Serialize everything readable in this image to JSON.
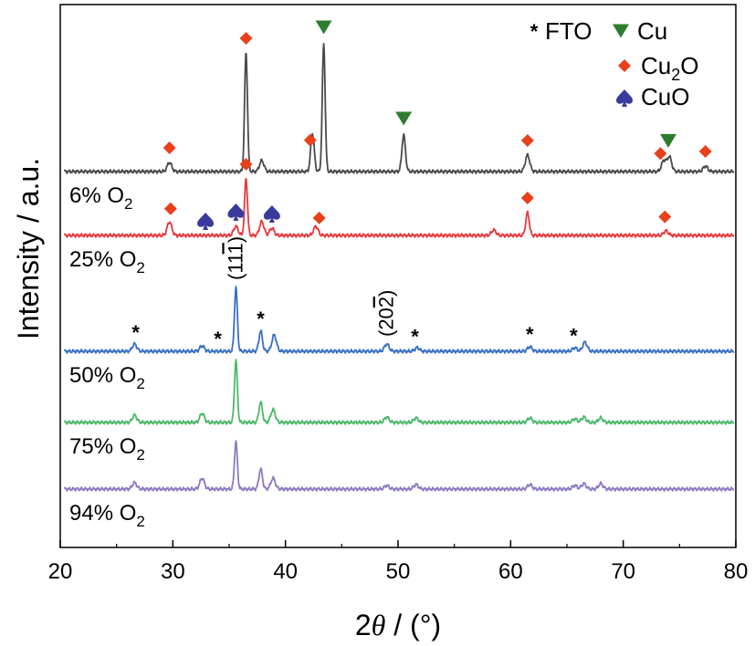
{
  "chart_data": {
    "type": "line",
    "xlabel_prefix": "2",
    "xlabel_theta": "θ",
    "xlabel_suffix": " / (°)",
    "ylabel": "Intensity / a.u.",
    "xlim": [
      20,
      80
    ],
    "xticks": [
      "20",
      "30",
      "40",
      "50",
      "60",
      "70",
      "80"
    ],
    "xtick_values": [
      20,
      30,
      40,
      50,
      60,
      70,
      80
    ],
    "grid": false,
    "legend": {
      "placement": "top-right",
      "items": [
        {
          "marker": "star",
          "label": "FTO"
        },
        {
          "marker": "triangle-down",
          "label": "Cu",
          "color": "#2e7d2e"
        },
        {
          "marker": "diamond",
          "label": "Cu",
          "sub": "2",
          "label_tail": "O",
          "color": "#e8401c"
        },
        {
          "marker": "spade",
          "label": "CuO",
          "color": "#3a3a9c"
        }
      ]
    },
    "series": [
      {
        "label_main": "6% O",
        "label_sub": "2",
        "color": "#4a4a4a",
        "baseline": 0.0,
        "peaks": [
          [
            29.7,
            0.1
          ],
          [
            36.5,
            1.3
          ],
          [
            37.9,
            0.12
          ],
          [
            42.4,
            0.42
          ],
          [
            43.4,
            1.4
          ],
          [
            50.5,
            0.4
          ],
          [
            61.5,
            0.18
          ],
          [
            73.6,
            0.12
          ],
          [
            74.1,
            0.16
          ],
          [
            77.3,
            0.06
          ]
        ]
      },
      {
        "label_main": "25% O",
        "label_sub": "2",
        "color": "#e8383d",
        "baseline": 0.0,
        "peaks": [
          [
            29.7,
            0.15
          ],
          [
            35.6,
            0.1
          ],
          [
            36.5,
            0.62
          ],
          [
            37.9,
            0.15
          ],
          [
            38.8,
            0.08
          ],
          [
            42.7,
            0.1
          ],
          [
            58.5,
            0.06
          ],
          [
            61.5,
            0.25
          ],
          [
            73.8,
            0.05
          ]
        ]
      },
      {
        "label_main": "50% O",
        "label_sub": "2",
        "color": "#3a6fc4",
        "baseline": 0.0,
        "peaks": [
          [
            26.6,
            0.08
          ],
          [
            32.6,
            0.06
          ],
          [
            35.6,
            0.7
          ],
          [
            37.8,
            0.22
          ],
          [
            39.0,
            0.18
          ],
          [
            49.0,
            0.08
          ],
          [
            51.7,
            0.04
          ],
          [
            61.7,
            0.05
          ],
          [
            65.7,
            0.04
          ],
          [
            66.6,
            0.1
          ]
        ]
      },
      {
        "label_main": "75% O",
        "label_sub": "2",
        "color": "#4cb86a",
        "baseline": 0.0,
        "peaks": [
          [
            26.6,
            0.08
          ],
          [
            32.6,
            0.1
          ],
          [
            35.6,
            0.68
          ],
          [
            37.8,
            0.22
          ],
          [
            38.9,
            0.14
          ],
          [
            49.0,
            0.06
          ],
          [
            51.6,
            0.05
          ],
          [
            61.7,
            0.05
          ],
          [
            65.7,
            0.04
          ],
          [
            66.5,
            0.06
          ],
          [
            68.0,
            0.05
          ]
        ]
      },
      {
        "label_main": "94% O",
        "label_sub": "2",
        "color": "#8e7ac2",
        "baseline": 0.0,
        "peaks": [
          [
            26.6,
            0.07
          ],
          [
            32.6,
            0.12
          ],
          [
            35.6,
            0.52
          ],
          [
            37.8,
            0.22
          ],
          [
            38.9,
            0.12
          ],
          [
            49.0,
            0.04
          ],
          [
            51.6,
            0.05
          ],
          [
            61.7,
            0.05
          ],
          [
            65.7,
            0.04
          ],
          [
            66.5,
            0.06
          ],
          [
            68.0,
            0.06
          ]
        ]
      }
    ],
    "markers": [
      {
        "series": 0,
        "type": "diamond",
        "x": 29.7
      },
      {
        "series": 0,
        "type": "diamond",
        "x": 36.5
      },
      {
        "series": 0,
        "type": "diamond",
        "x": 42.2
      },
      {
        "series": 0,
        "type": "triangle",
        "x": 43.4
      },
      {
        "series": 0,
        "type": "triangle",
        "x": 50.5
      },
      {
        "series": 0,
        "type": "diamond",
        "x": 61.5
      },
      {
        "series": 0,
        "type": "diamond",
        "x": 73.3
      },
      {
        "series": 0,
        "type": "triangle",
        "x": 74.0
      },
      {
        "series": 0,
        "type": "diamond",
        "x": 77.3
      },
      {
        "series": 1,
        "type": "diamond",
        "x": 29.8
      },
      {
        "series": 1,
        "type": "spade",
        "x": 32.9
      },
      {
        "series": 1,
        "type": "spade",
        "x": 35.6
      },
      {
        "series": 1,
        "type": "diamond",
        "x": 36.5
      },
      {
        "series": 1,
        "type": "spade",
        "x": 38.8
      },
      {
        "series": 1,
        "type": "diamond",
        "x": 43.0
      },
      {
        "series": 1,
        "type": "diamond",
        "x": 61.5
      },
      {
        "series": 1,
        "type": "diamond",
        "x": 73.7
      },
      {
        "series": 2,
        "type": "star",
        "x": 26.7
      },
      {
        "series": 2,
        "type": "star",
        "x": 34.0
      },
      {
        "series": 2,
        "type": "star",
        "x": 37.8
      },
      {
        "series": 2,
        "type": "star",
        "x": 51.5
      },
      {
        "series": 2,
        "type": "star",
        "x": 61.7
      },
      {
        "series": 2,
        "type": "star",
        "x": 65.6
      }
    ],
    "annotations": [
      {
        "text": "(11",
        "bar": "1",
        "close": ")",
        "x": 35.6
      },
      {
        "text": "(20",
        "bar": "2",
        "close": ")",
        "x": 49.0
      }
    ]
  }
}
